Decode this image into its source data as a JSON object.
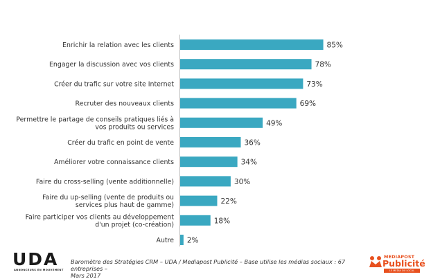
{
  "chart_data": {
    "type": "bar",
    "orientation": "horizontal",
    "title": "",
    "xlabel": "",
    "ylabel": "",
    "xlim": [
      0,
      100
    ],
    "grid": false,
    "legend": "none",
    "bar_color": "#3aa8c1",
    "value_suffix": "%",
    "categories": [
      [
        "Enrichir la relation avec les clients"
      ],
      [
        "Engager la discussion avec vos clients"
      ],
      [
        "Créer du trafic sur votre site Internet"
      ],
      [
        "Recruter des nouveaux clients"
      ],
      [
        "Permettre le partage de conseils pratiques liés à",
        "vos produits ou services"
      ],
      [
        "Créer du trafic en point de vente"
      ],
      [
        "Améliorer votre connaissance clients"
      ],
      [
        "Faire du cross-selling (vente additionnelle)"
      ],
      [
        "Faire du up-selling (vente de produits ou",
        "services plus haut de gamme)"
      ],
      [
        "Faire participer vos clients au développement",
        "d'un projet (co-création)"
      ],
      [
        "Autre"
      ]
    ],
    "values": [
      85,
      78,
      73,
      69,
      49,
      36,
      34,
      30,
      22,
      18,
      2
    ]
  },
  "footer": {
    "uda_logo_text": "UDA",
    "uda_tagline": "ANNONCEURS EN MOUVEMENT",
    "source_line1": "Baromètre des Stratégies CRM – UDA / Mediapost Publicité – Base utilise les médias sociaux : 67 entreprises –",
    "source_line2": "Mars 2017",
    "mediapost_top": "MEDIAPOST",
    "mediapost_main": "Publicité",
    "mediapost_tag": "LE MEDIA DU LOCAL",
    "mediapost_color": "#e8501e"
  }
}
